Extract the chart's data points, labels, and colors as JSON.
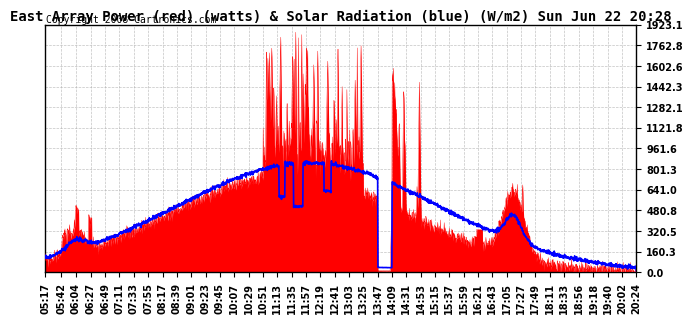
{
  "title": "East Array Power (red) (watts) & Solar Radiation (blue) (W/m2) Sun Jun 22 20:28",
  "copyright": "Copyright 2008 Cartronics.com",
  "y_ticks": [
    0.0,
    160.3,
    320.5,
    480.8,
    641.0,
    801.3,
    961.6,
    1121.8,
    1282.1,
    1442.3,
    1602.6,
    1762.8,
    1923.1
  ],
  "x_labels": [
    "05:17",
    "05:42",
    "06:04",
    "06:27",
    "06:49",
    "07:11",
    "07:33",
    "07:55",
    "08:17",
    "08:39",
    "09:01",
    "09:23",
    "09:45",
    "10:07",
    "10:29",
    "10:51",
    "11:13",
    "11:35",
    "11:57",
    "12:19",
    "12:41",
    "13:03",
    "13:25",
    "13:47",
    "14:09",
    "14:31",
    "14:53",
    "15:15",
    "15:37",
    "15:59",
    "16:21",
    "16:43",
    "17:05",
    "17:27",
    "17:49",
    "18:11",
    "18:33",
    "18:56",
    "19:18",
    "19:40",
    "20:02",
    "20:24"
  ],
  "background_color": "#ffffff",
  "red_color": "#ff0000",
  "blue_color": "#0000ff",
  "grid_color": "#aaaaaa",
  "title_fontsize": 10,
  "copyright_fontsize": 7,
  "tick_fontsize": 7,
  "ymax": 1923.1
}
